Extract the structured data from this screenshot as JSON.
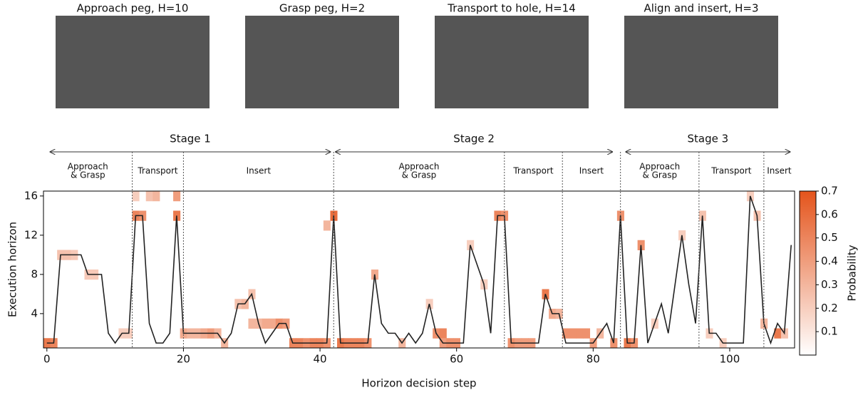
{
  "chart_data": {
    "type": "heatmap",
    "panel_titles": [
      "Approach peg, H=10",
      "Grasp peg, H=2",
      "Transport to hole, H=14",
      "Align and insert, H=3"
    ],
    "xlabel": "Horizon decision step",
    "ylabel": "Execution horizon",
    "colorbar_label": "Probability",
    "xlim": [
      -0.5,
      109.5
    ],
    "ylim": [
      0.5,
      16.5
    ],
    "xticks": [
      0,
      20,
      40,
      60,
      80,
      100
    ],
    "yticks": [
      4,
      8,
      12,
      16
    ],
    "clim": [
      0,
      0.7
    ],
    "cticks": [
      0.1,
      0.2,
      0.3,
      0.4,
      0.5,
      0.6,
      0.7
    ],
    "cmap": [
      "#ffffff",
      "#e4541c"
    ],
    "line_color": "#222222",
    "stages": [
      {
        "label": "Stage 1",
        "start": 0.5,
        "end": 41.5,
        "phases": [
          {
            "label": [
              "Approach",
              "& Grasp"
            ],
            "end": 12.5
          },
          {
            "label": [
              "Transport"
            ],
            "end": 20
          },
          {
            "label": [
              "Insert"
            ],
            "end": 42
          }
        ]
      },
      {
        "label": "Stage 2",
        "start": 42.3,
        "end": 82.8,
        "phases": [
          {
            "label": [
              "Approach",
              "& Grasp"
            ],
            "end": 67
          },
          {
            "label": [
              "Transport"
            ],
            "end": 75.5
          },
          {
            "label": [
              "Insert"
            ],
            "end": 84
          }
        ]
      },
      {
        "label": "Stage 3",
        "start": 84.8,
        "end": 108.8,
        "phases": [
          {
            "label": [
              "Approach",
              "& Grasp"
            ],
            "end": 95.5
          },
          {
            "label": [
              "Transport"
            ],
            "end": 105
          },
          {
            "label": [
              "Insert"
            ],
            "end": 109.5
          }
        ]
      }
    ],
    "series": [
      {
        "values": [
          1,
          1,
          10,
          10,
          10,
          10,
          8,
          8,
          8,
          2,
          1,
          2,
          2,
          14,
          14,
          3,
          1,
          1,
          2,
          14,
          2,
          2,
          2,
          2,
          2,
          2,
          1,
          2,
          5,
          5,
          6,
          3,
          1,
          2,
          3,
          3,
          1,
          1,
          1,
          1,
          1,
          1,
          14,
          1,
          1,
          1,
          1,
          1,
          8,
          3,
          2,
          2,
          1,
          2,
          1,
          2,
          5,
          2,
          1,
          1,
          1,
          1,
          11,
          9,
          7,
          2,
          14,
          14,
          1,
          1,
          1,
          1,
          1,
          6,
          4,
          4,
          1,
          1,
          1,
          1,
          1,
          2,
          3,
          1,
          14,
          1,
          1,
          11,
          1,
          3,
          5,
          2,
          7,
          12,
          7,
          3,
          14,
          2,
          2,
          1,
          1,
          1,
          1,
          16,
          14,
          3,
          1,
          3,
          2,
          11
        ]
      }
    ],
    "heatmap": [
      [
        0,
        1,
        0.55
      ],
      [
        1,
        1,
        0.5
      ],
      [
        2,
        10,
        0.25
      ],
      [
        3,
        10,
        0.25
      ],
      [
        4,
        10,
        0.22
      ],
      [
        6,
        8,
        0.22
      ],
      [
        7,
        8,
        0.22
      ],
      [
        11,
        2,
        0.2
      ],
      [
        12,
        2,
        0.2
      ],
      [
        13,
        14,
        0.5
      ],
      [
        14,
        14,
        0.45
      ],
      [
        13,
        16,
        0.2
      ],
      [
        15,
        16,
        0.25
      ],
      [
        16,
        16,
        0.3
      ],
      [
        19,
        14,
        0.55
      ],
      [
        19,
        16,
        0.4
      ],
      [
        20,
        2,
        0.35
      ],
      [
        21,
        2,
        0.3
      ],
      [
        22,
        2,
        0.3
      ],
      [
        23,
        2,
        0.35
      ],
      [
        24,
        2,
        0.4
      ],
      [
        25,
        2,
        0.3
      ],
      [
        26,
        1,
        0.3
      ],
      [
        28,
        5,
        0.25
      ],
      [
        29,
        5,
        0.3
      ],
      [
        30,
        6,
        0.25
      ],
      [
        30,
        3,
        0.3
      ],
      [
        31,
        3,
        0.3
      ],
      [
        32,
        3,
        0.35
      ],
      [
        33,
        3,
        0.35
      ],
      [
        34,
        3,
        0.45
      ],
      [
        35,
        3,
        0.4
      ],
      [
        36,
        1,
        0.5
      ],
      [
        37,
        1,
        0.5
      ],
      [
        38,
        1,
        0.45
      ],
      [
        39,
        1,
        0.5
      ],
      [
        40,
        1,
        0.5
      ],
      [
        41,
        1,
        0.45
      ],
      [
        42,
        14,
        0.6
      ],
      [
        41,
        13,
        0.3
      ],
      [
        43,
        1,
        0.55
      ],
      [
        44,
        1,
        0.5
      ],
      [
        45,
        1,
        0.5
      ],
      [
        46,
        1,
        0.5
      ],
      [
        47,
        1,
        0.45
      ],
      [
        48,
        8,
        0.35
      ],
      [
        52,
        1,
        0.3
      ],
      [
        56,
        5,
        0.2
      ],
      [
        57,
        2,
        0.45
      ],
      [
        58,
        2,
        0.5
      ],
      [
        58,
        1,
        0.4
      ],
      [
        59,
        1,
        0.45
      ],
      [
        60,
        1,
        0.45
      ],
      [
        62,
        11,
        0.2
      ],
      [
        64,
        7,
        0.2
      ],
      [
        66,
        14,
        0.5
      ],
      [
        67,
        14,
        0.45
      ],
      [
        68,
        1,
        0.45
      ],
      [
        69,
        1,
        0.4
      ],
      [
        70,
        1,
        0.4
      ],
      [
        71,
        1,
        0.4
      ],
      [
        73,
        6,
        0.55
      ],
      [
        74,
        4,
        0.35
      ],
      [
        75,
        4,
        0.3
      ],
      [
        76,
        2,
        0.45
      ],
      [
        77,
        2,
        0.45
      ],
      [
        78,
        2,
        0.45
      ],
      [
        79,
        2,
        0.45
      ],
      [
        80,
        1,
        0.4
      ],
      [
        81,
        2,
        0.3
      ],
      [
        83,
        1,
        0.45
      ],
      [
        84,
        14,
        0.45
      ],
      [
        85,
        1,
        0.55
      ],
      [
        86,
        1,
        0.45
      ],
      [
        87,
        11,
        0.45
      ],
      [
        89,
        3,
        0.2
      ],
      [
        93,
        12,
        0.2
      ],
      [
        96,
        14,
        0.25
      ],
      [
        97,
        2,
        0.2
      ],
      [
        99,
        1,
        0.2
      ],
      [
        103,
        16,
        0.2
      ],
      [
        104,
        14,
        0.25
      ],
      [
        105,
        3,
        0.3
      ],
      [
        107,
        2,
        0.55
      ],
      [
        108,
        2,
        0.25
      ]
    ]
  }
}
